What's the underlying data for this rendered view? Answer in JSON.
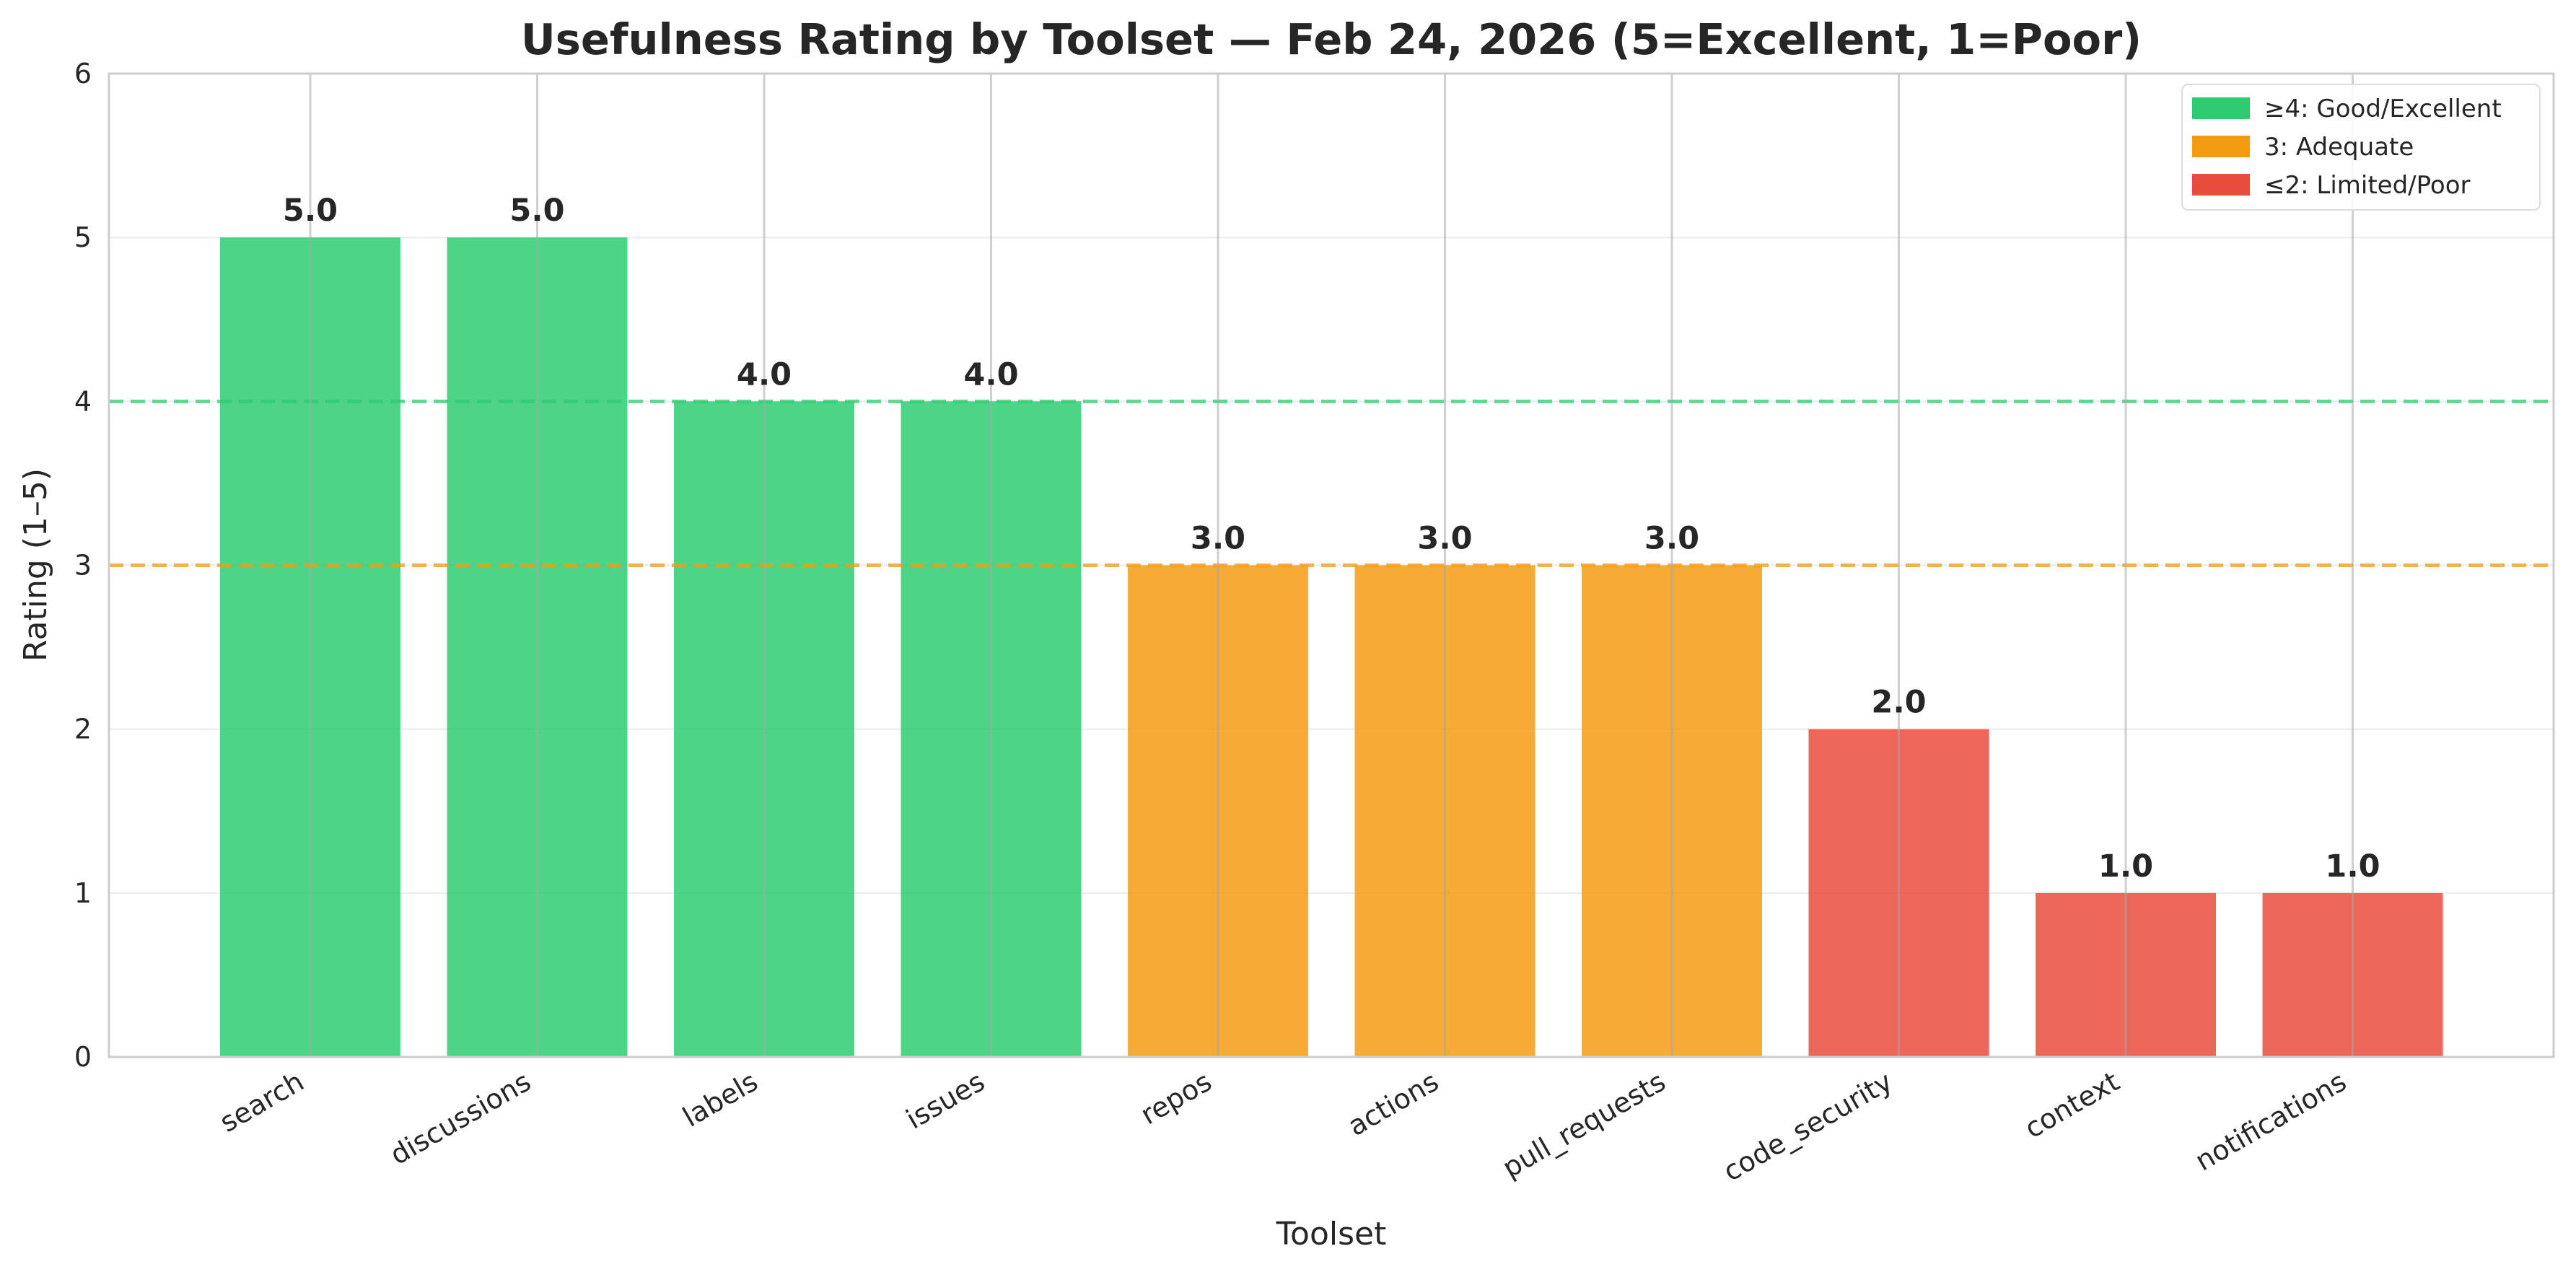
{
  "chart_data": {
    "type": "bar",
    "title": "Usefulness Rating by Toolset — Feb 24, 2026 (5=Excellent, 1=Poor)",
    "xlabel": "Toolset",
    "ylabel": "Rating (1–5)",
    "ylim": [
      0,
      6
    ],
    "yticks": [
      "0",
      "1",
      "2",
      "3",
      "4",
      "5",
      "6"
    ],
    "grid": true,
    "legend_position": "top-right",
    "categories": [
      "search",
      "discussions",
      "labels",
      "issues",
      "repos",
      "actions",
      "pull_requests",
      "code_security",
      "context",
      "notifications"
    ],
    "values": [
      5.0,
      5.0,
      4.0,
      4.0,
      3.0,
      3.0,
      3.0,
      2.0,
      1.0,
      1.0
    ],
    "value_labels": [
      "5.0",
      "5.0",
      "4.0",
      "4.0",
      "3.0",
      "3.0",
      "3.0",
      "2.0",
      "1.0",
      "1.0"
    ],
    "reference_lines": [
      {
        "y": 4,
        "color": "#2ecc71",
        "style": "dashed"
      },
      {
        "y": 3,
        "color": "#f39c12",
        "style": "dashed"
      }
    ],
    "legend": [
      {
        "label": "≥4: Good/Excellent",
        "color": "#2ecc71"
      },
      {
        "label": "3: Adequate",
        "color": "#f39c12"
      },
      {
        "label": "≤2: Limited/Poor",
        "color": "#e74c3c"
      }
    ],
    "colors": {
      "good": "#2ecc71",
      "adequate": "#f39c12",
      "poor": "#e74c3c"
    }
  }
}
